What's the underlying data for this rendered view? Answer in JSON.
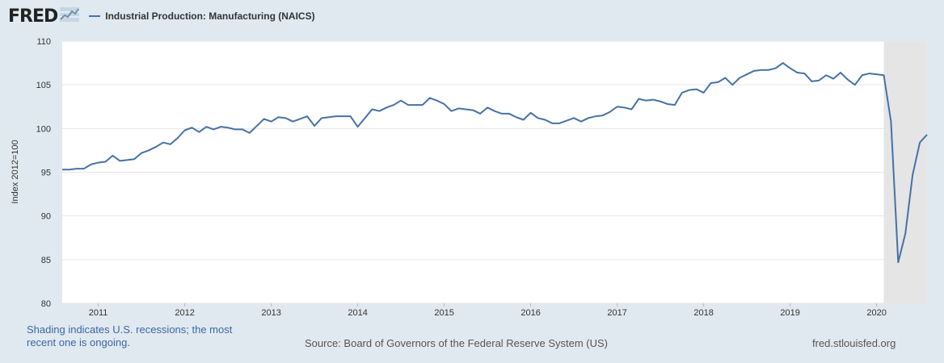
{
  "header": {
    "logo_text": "FRED",
    "logo_icon": "fred-chart-icon",
    "legend_label": "Industrial Production: Manufacturing (NAICS)"
  },
  "chart_data": {
    "type": "line",
    "title": "Industrial Production: Manufacturing (NAICS)",
    "ylabel": "Index 2012=100",
    "xlabel": "",
    "ylim": [
      80,
      110
    ],
    "xlim": [
      2010.5833,
      2020.5833
    ],
    "yticks": [
      80,
      85,
      90,
      95,
      100,
      105,
      110
    ],
    "xticks": [
      "2011",
      "2012",
      "2013",
      "2014",
      "2015",
      "2016",
      "2017",
      "2018",
      "2019",
      "2020"
    ],
    "grid": "horizontal",
    "line_color": "#4572a7",
    "recession_color": "#e5e5e5",
    "recession_start": "2020-02",
    "recession_end": "ongoing",
    "start": "2010-08",
    "frequency": "monthly",
    "series": [
      {
        "name": "Industrial Production: Manufacturing (NAICS)",
        "values": [
          95.3,
          95.3,
          95.4,
          95.4,
          95.9,
          96.1,
          96.2,
          96.9,
          96.3,
          96.4,
          96.5,
          97.2,
          97.5,
          97.9,
          98.4,
          98.2,
          98.9,
          99.8,
          100.1,
          99.6,
          100.2,
          99.9,
          100.2,
          100.1,
          99.9,
          99.9,
          99.5,
          100.3,
          101.1,
          100.8,
          101.3,
          101.2,
          100.8,
          101.1,
          101.4,
          100.3,
          101.2,
          101.3,
          101.4,
          101.4,
          101.4,
          100.2,
          101.2,
          102.2,
          102.0,
          102.4,
          102.7,
          103.2,
          102.7,
          102.7,
          102.7,
          103.5,
          103.2,
          102.8,
          102.0,
          102.3,
          102.2,
          102.1,
          101.7,
          102.4,
          102.0,
          101.7,
          101.7,
          101.3,
          101.0,
          101.8,
          101.2,
          101.0,
          100.6,
          100.6,
          100.9,
          101.2,
          100.8,
          101.2,
          101.4,
          101.5,
          101.9,
          102.5,
          102.4,
          102.2,
          103.4,
          103.2,
          103.3,
          103.1,
          102.8,
          102.7,
          104.1,
          104.4,
          104.5,
          104.1,
          105.2,
          105.3,
          105.8,
          105.0,
          105.8,
          106.2,
          106.6,
          106.7,
          106.7,
          106.9,
          107.5,
          106.9,
          106.4,
          106.3,
          105.4,
          105.5,
          106.1,
          105.7,
          106.4,
          105.6,
          105.0,
          106.1,
          106.3,
          106.2,
          106.1,
          100.8,
          84.7,
          88.0,
          94.7,
          98.4,
          99.3
        ]
      }
    ]
  },
  "footer": {
    "note_line1": "Shading indicates U.S. recessions; the most",
    "note_line2": "recent one is ongoing.",
    "source": "Source: Board of Governors of the Federal Reserve System (US)",
    "site": "fred.stlouisfed.org"
  }
}
